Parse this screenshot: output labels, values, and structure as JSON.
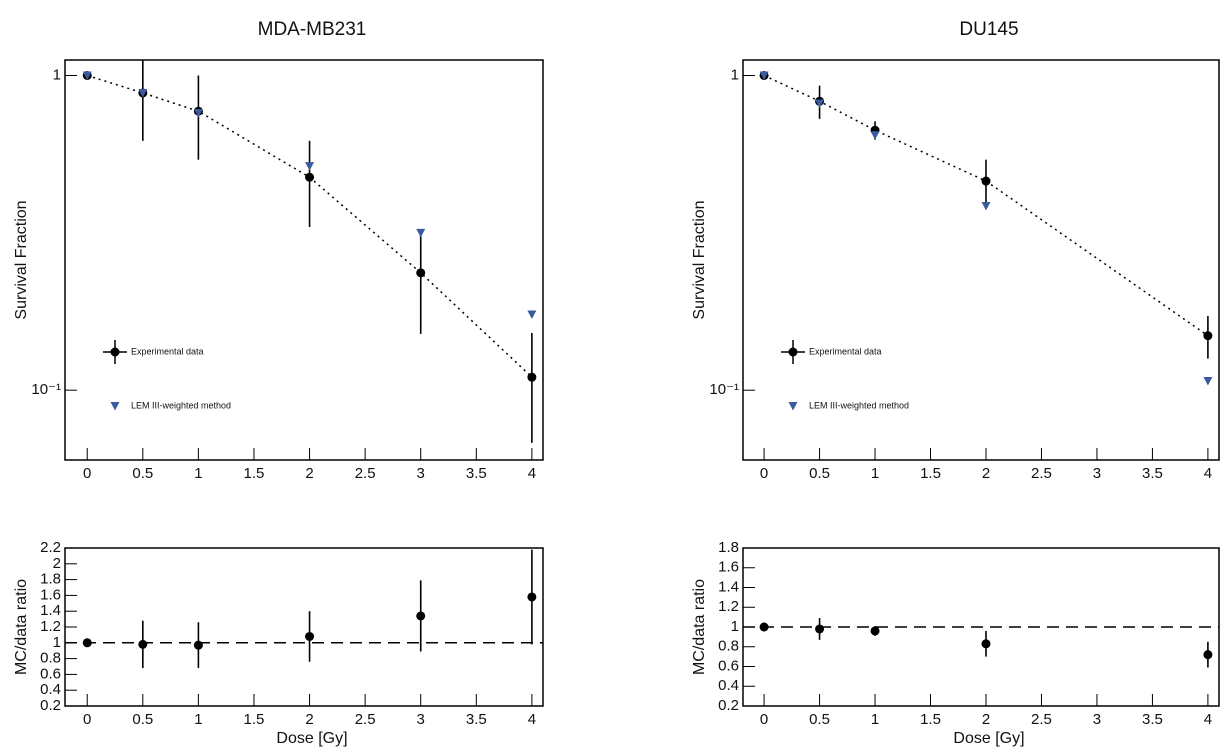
{
  "chart_data": [
    {
      "type": "scatter",
      "title": "MDA-MB231",
      "ylabel": "Survival Fraction",
      "ylog": true,
      "xlim": [
        -0.2,
        4.1
      ],
      "xticks": [
        0,
        0.5,
        1,
        1.5,
        2,
        2.5,
        3,
        3.5,
        4
      ],
      "ylim": [
        0.06,
        1.12
      ],
      "yticks": [
        1,
        {
          "value": 0.1,
          "label": "10⁻¹"
        }
      ],
      "legend": "lower left",
      "series": [
        {
          "name": "Experimental data",
          "color": "#000000",
          "marker": "circle",
          "line_style": "dotted",
          "x": [
            0,
            0.5,
            1,
            2,
            3,
            4
          ],
          "values": [
            1,
            0.88,
            0.77,
            0.475,
            0.236,
            0.11
          ],
          "errors": [
            0,
            0.26,
            0.23,
            0.145,
            0.085,
            0.042
          ]
        },
        {
          "name": "LEM III-weighted method",
          "color": "#3a5ba0",
          "marker": "triangle",
          "x": [
            0,
            0.5,
            1,
            2,
            3,
            4
          ],
          "values": [
            1,
            0.88,
            0.76,
            0.515,
            0.316,
            0.174
          ]
        }
      ]
    },
    {
      "type": "scatter",
      "title": "DU145",
      "ylabel": "Survival Fraction",
      "ylog": true,
      "xlim": [
        -0.19,
        4.1
      ],
      "xticks": [
        0,
        0.5,
        1,
        1.5,
        2,
        2.5,
        3,
        3.5,
        4
      ],
      "ylim": [
        0.06,
        1.12
      ],
      "yticks": [
        1,
        {
          "value": 0.1,
          "label": "10⁻¹"
        }
      ],
      "legend": "lower left",
      "series": [
        {
          "name": "Experimental data",
          "color": "#000000",
          "marker": "circle",
          "line_style": "dotted",
          "x": [
            0,
            0.5,
            1,
            2,
            4
          ],
          "values": [
            1,
            0.828,
            0.67,
            0.462,
            0.149
          ],
          "errors": [
            0,
            0.1,
            0.045,
            0.078,
            0.023
          ]
        },
        {
          "name": "LEM III-weighted method",
          "color": "#3a5ba0",
          "marker": "triangle",
          "x": [
            0,
            0.5,
            1,
            2,
            4
          ],
          "values": [
            1,
            0.815,
            0.646,
            0.385,
            0.107
          ]
        }
      ]
    },
    {
      "type": "scatter",
      "ylabel": "MC/data ratio",
      "xlabel": "Dose [Gy]",
      "ylog": false,
      "xlim": [
        -0.2,
        4.1
      ],
      "xticks": [
        0,
        0.5,
        1,
        1.5,
        2,
        2.5,
        3,
        3.5,
        4
      ],
      "ylim": [
        0.2,
        2.2
      ],
      "yticks": [
        0.2,
        0.4,
        0.6,
        0.8,
        1,
        1.2,
        1.4,
        1.6,
        1.8,
        2,
        2.2
      ],
      "hline": 1,
      "hline_style": "dashed",
      "series": [
        {
          "color": "#000000",
          "marker": "circle",
          "x": [
            0,
            0.5,
            1,
            2,
            3,
            4
          ],
          "values": [
            1,
            0.98,
            0.97,
            1.08,
            1.34,
            1.58
          ],
          "errors": [
            0,
            0.3,
            0.29,
            0.32,
            0.45,
            0.6
          ]
        }
      ]
    },
    {
      "type": "scatter",
      "ylabel": "MC/data ratio",
      "xlabel": "Dose [Gy]",
      "ylog": false,
      "xlim": [
        -0.19,
        4.1
      ],
      "xticks": [
        0,
        0.5,
        1,
        1.5,
        2,
        2.5,
        3,
        3.5,
        4
      ],
      "ylim": [
        0.2,
        1.8
      ],
      "yticks": [
        0.2,
        0.4,
        0.6,
        0.8,
        1,
        1.2,
        1.4,
        1.6,
        1.8
      ],
      "hline": 1,
      "hline_style": "dashed",
      "series": [
        {
          "color": "#000000",
          "marker": "circle",
          "x": [
            0,
            0.5,
            1,
            2,
            4
          ],
          "values": [
            1,
            0.98,
            0.96,
            0.83,
            0.72
          ],
          "errors": [
            0,
            0.11,
            0.05,
            0.13,
            0.13
          ]
        }
      ]
    }
  ]
}
